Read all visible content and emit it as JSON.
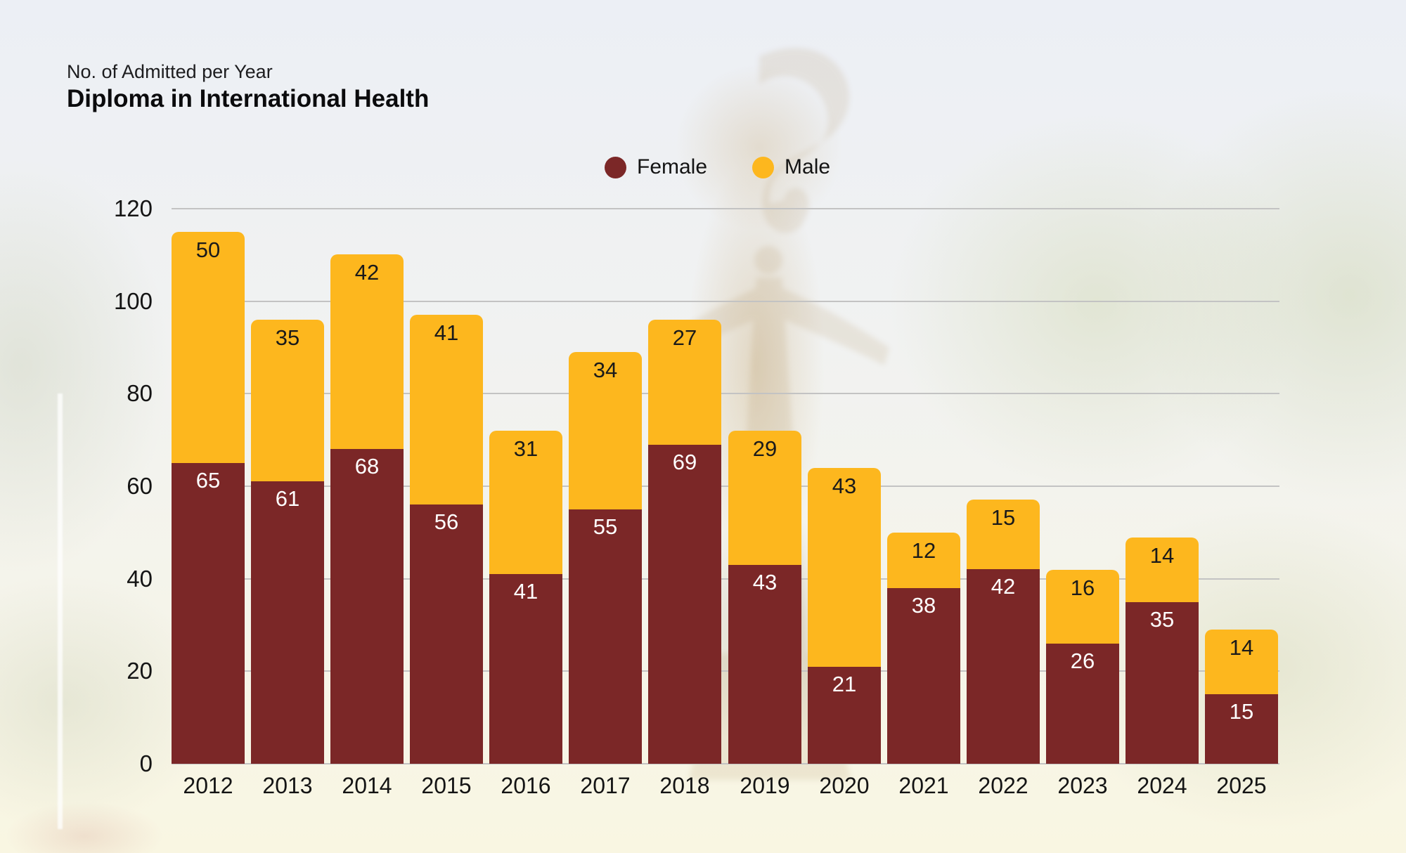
{
  "header": {
    "subtitle": "No. of Admitted per Year",
    "title": "Diploma in International Health"
  },
  "legend": [
    {
      "label": "Female",
      "color": "#7B2727"
    },
    {
      "label": "Male",
      "color": "#FDB71E"
    }
  ],
  "chart_data": {
    "type": "bar",
    "stacked": true,
    "title": "Diploma in International Health",
    "subtitle": "No. of Admitted per Year",
    "categories": [
      "2012",
      "2013",
      "2014",
      "2015",
      "2016",
      "2017",
      "2018",
      "2019",
      "2020",
      "2021",
      "2022",
      "2023",
      "2024",
      "2025"
    ],
    "series": [
      {
        "name": "Female",
        "color": "#7B2727",
        "label_color": "#FFFFFF",
        "values": [
          65,
          61,
          68,
          56,
          41,
          55,
          69,
          43,
          21,
          38,
          42,
          26,
          35,
          15
        ]
      },
      {
        "name": "Male",
        "color": "#FDB71E",
        "label_color": "#1A1A1A",
        "values": [
          50,
          35,
          42,
          41,
          31,
          34,
          27,
          29,
          43,
          12,
          15,
          16,
          14,
          14
        ]
      }
    ],
    "xlabel": "",
    "ylabel": "",
    "ylim": [
      0,
      120
    ],
    "yticks": [
      0,
      20,
      40,
      60,
      80,
      100,
      120
    ],
    "grid": true,
    "gridline_color": "#C3C3C3",
    "legend_position": "top-center",
    "value_labels": true
  }
}
